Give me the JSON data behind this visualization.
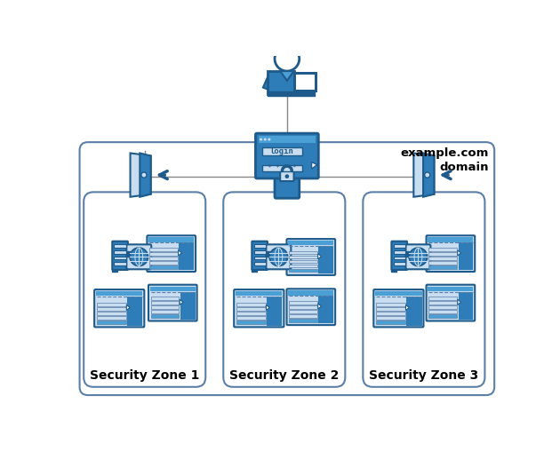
{
  "bg_color": "#ffffff",
  "border_color": "#5b7fa6",
  "fill_light": "#c8ddf0",
  "fill_dark": "#1e5a8a",
  "fill_mid": "#2e7db8",
  "fill_mid2": "#4a9fd4",
  "text_color": "#000000",
  "zone_labels": [
    "Security Zone 1",
    "Security Zone 2",
    "Security Zone 3"
  ],
  "domain_label": "example.com\ndomain",
  "line_color": "#888888"
}
